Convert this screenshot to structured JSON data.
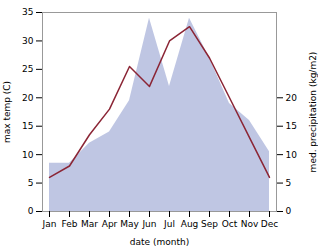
{
  "chart_data": {
    "type": "line",
    "categories": [
      "Jan",
      "Feb",
      "Mar",
      "Apr",
      "May",
      "Jun",
      "Jul",
      "Aug",
      "Sep",
      "Oct",
      "Nov",
      "Dec"
    ],
    "series": [
      {
        "type": "area",
        "axis": "y2",
        "color": "#b8c0e0",
        "values": [
          8.5,
          8.5,
          12.0,
          14.0,
          19.5,
          34.0,
          22.0,
          34.0,
          27.0,
          19.0,
          16.0,
          10.5
        ]
      },
      {
        "type": "line",
        "color": "#8b2535",
        "values": [
          6.0,
          8.0,
          13.5,
          18.0,
          25.5,
          22.0,
          30.0,
          32.5,
          27.0,
          20.0,
          13.0,
          6.0
        ]
      }
    ],
    "xlabel": "date (month)",
    "ylabel": "max temp (C)",
    "y2label": "med. precipitation (kg/m2)",
    "ylim": [
      0,
      35
    ],
    "yticks": [
      0,
      5,
      10,
      15,
      20,
      25,
      30,
      35
    ],
    "y2lim": [
      0,
      35
    ],
    "y2ticks": [
      0,
      5,
      10,
      15,
      20
    ],
    "grid": false
  }
}
